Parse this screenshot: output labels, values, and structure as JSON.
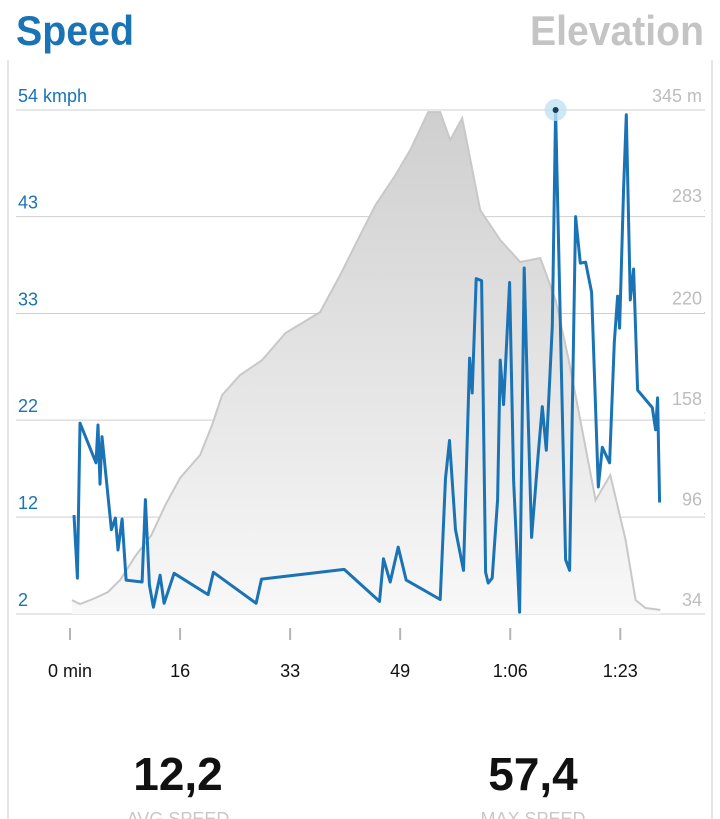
{
  "chart_data": {
    "type": "line",
    "xlim": [
      -8.1,
      95.2
    ],
    "xticks": [
      {
        "value": 0,
        "label": "0 min"
      },
      {
        "value": 16.5,
        "label": "16"
      },
      33,
      {
        "value": 49.5,
        "label": "49"
      },
      {
        "value": 66,
        "label": "1:06"
      },
      {
        "value": 82.5,
        "label": "1:23"
      }
    ],
    "ylim": [
      2,
      54
    ],
    "yticks": [
      2,
      12,
      22,
      33,
      43,
      {
        "value": 54,
        "label": "54 kmph"
      }
    ],
    "y2lim": [
      34,
      345
    ],
    "y2ticks": [
      34,
      96,
      158,
      220,
      283,
      {
        "value": 345,
        "label": "345 m"
      }
    ],
    "grid": true,
    "series": [
      {
        "name": "Speed",
        "color": "#1a73b5",
        "x": [
          0.6,
          1.1,
          1.5,
          3.9,
          4.2,
          4.5,
          4.8,
          6.2,
          6.8,
          7.2,
          7.8,
          8.4,
          10.8,
          11.3,
          11.9,
          12.5,
          13.5,
          14.1,
          15.6,
          20.7,
          21.5,
          27.9,
          28.7,
          41.1,
          46.4,
          47.0,
          48.0,
          49.2,
          50.4,
          55.5,
          56.3,
          56.9,
          57.8,
          59.0,
          59.9,
          60.3,
          60.9,
          61.7,
          62.3,
          62.7,
          63.3,
          64.1,
          64.5,
          65.0,
          65.9,
          66.5,
          67.4,
          68.1,
          68.6,
          69.2,
          70.2,
          70.8,
          71.4,
          72.3,
          72.8,
          74.3,
          74.9,
          75.8,
          76.5,
          77.3,
          78.2,
          79.2,
          79.8,
          80.9,
          81.6,
          82.1,
          82.4,
          83.0,
          83.4,
          84.0,
          84.5,
          85.1,
          87.3,
          87.8,
          88.1,
          88.4
        ],
        "values": [
          12.2,
          5.7,
          21.7,
          17.6,
          21.5,
          15.4,
          20.3,
          10.7,
          11.9,
          8.6,
          11.8,
          5.5,
          5.3,
          13.8,
          5.0,
          2.7,
          6.0,
          3.1,
          6.2,
          4.0,
          6.3,
          3.1,
          5.6,
          6.6,
          3.3,
          7.7,
          5.3,
          8.9,
          5.5,
          3.5,
          16.0,
          19.9,
          10.7,
          6.5,
          28.4,
          24.8,
          36.6,
          36.4,
          6.3,
          5.2,
          5.7,
          13.8,
          28.2,
          23.6,
          36.2,
          15.8,
          2.2,
          37.7,
          24.3,
          9.9,
          18.6,
          23.4,
          18.9,
          31.7,
          54.0,
          7.6,
          6.5,
          43.0,
          38.2,
          38.3,
          35.2,
          15.1,
          19.2,
          17.6,
          30.0,
          34.8,
          31.5,
          45.9,
          53.5,
          34.4,
          37.6,
          25.1,
          23.3,
          21.0,
          24.3,
          13.5
        ]
      },
      {
        "name": "Elevation",
        "color": "#c8c8c8",
        "axis": "y2",
        "x": [
          0.3,
          1.5,
          3.8,
          5.7,
          7.5,
          9.8,
          12.2,
          14.3,
          16.5,
          19.5,
          21.3,
          22.8,
          25.5,
          28.8,
          32.3,
          37.5,
          40.5,
          43.5,
          45.8,
          48.8,
          51.0,
          53.7,
          55.5,
          57.0,
          58.8,
          61.5,
          64.5,
          67.5,
          70.5,
          72.8,
          74.7,
          76.5,
          78.8,
          81.0,
          83.3,
          84.8,
          86.3,
          88.5
        ],
        "values": [
          42.6,
          40.2,
          43.9,
          47.6,
          55.0,
          69.8,
          82.7,
          101.3,
          117.9,
          132.1,
          150.6,
          169.1,
          181.5,
          190.7,
          207.4,
          220.3,
          243.2,
          267.8,
          286.4,
          304.9,
          320.3,
          343.7,
          343.7,
          326.5,
          340.0,
          283.3,
          264.8,
          251.2,
          253.7,
          227.7,
          192.0,
          153.7,
          104.3,
          119.8,
          79.7,
          42.6,
          37.7,
          36.5
        ]
      }
    ]
  },
  "stats": [
    {
      "value": "12,2",
      "label": "AVG SPEED"
    },
    {
      "value": "57,4",
      "label": "MAX SPEED"
    }
  ]
}
